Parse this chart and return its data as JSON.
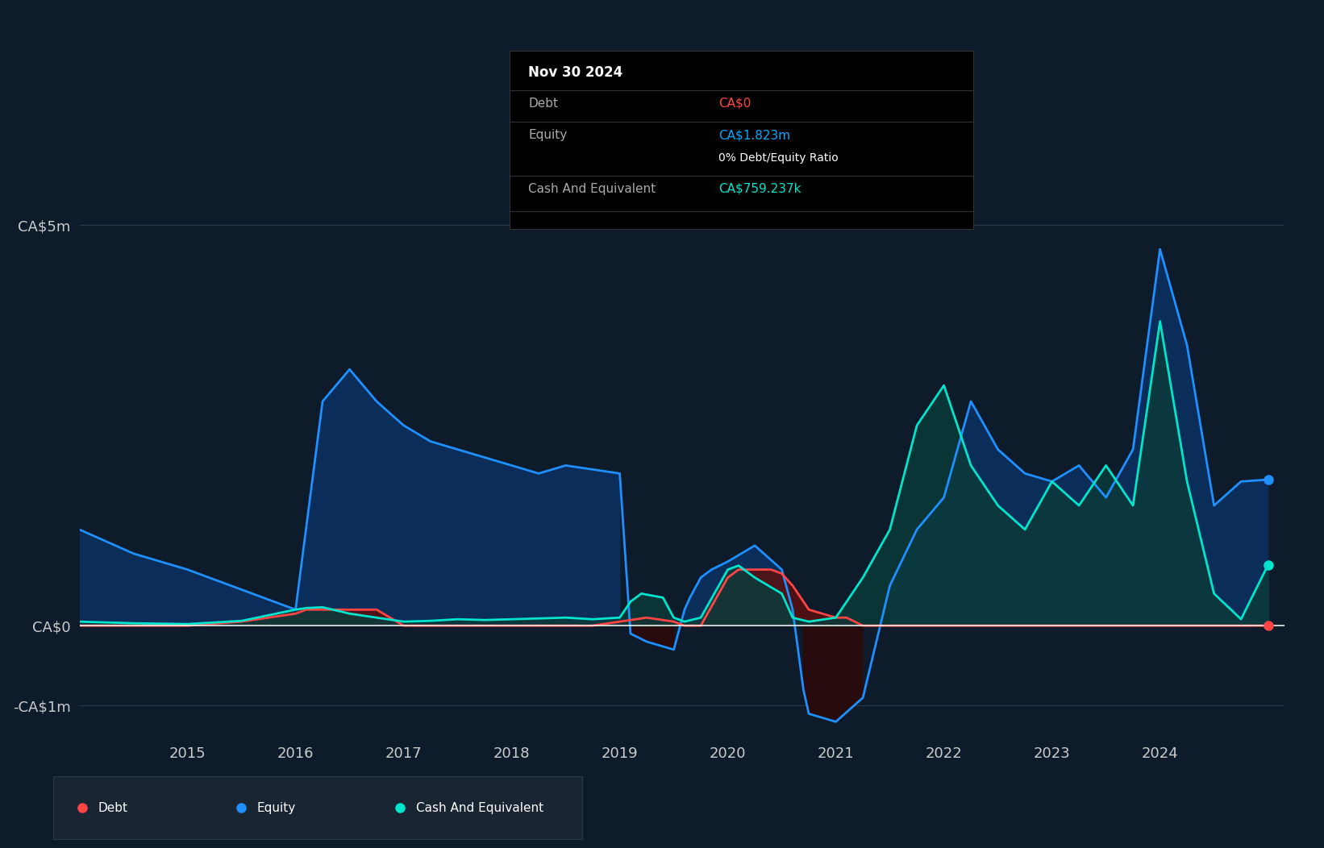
{
  "bg_color": "#0d1b2a",
  "grid_color": "#2a3a4a",
  "text_color": "#cccccc",
  "tooltip_box": {
    "date": "Nov 30 2024",
    "debt_label": "Debt",
    "debt_value": "CA$0",
    "debt_color": "#ff4444",
    "equity_label": "Equity",
    "equity_value": "CA$1.823m",
    "equity_color": "#00aaff",
    "ratio_text": "0% Debt/Equity Ratio",
    "ratio_color": "#ffffff",
    "cash_label": "Cash And Equivalent",
    "cash_value": "CA$759.237k",
    "cash_color": "#00e5cc"
  },
  "ytick_labels": [
    "CA$5m",
    "CA$0",
    "-CA$1m"
  ],
  "ytick_values": [
    5000000,
    0,
    -1000000
  ],
  "xtick_labels": [
    "2015",
    "2016",
    "2017",
    "2018",
    "2019",
    "2020",
    "2021",
    "2022",
    "2023",
    "2024"
  ],
  "xtick_values": [
    2015,
    2016,
    2017,
    2018,
    2019,
    2020,
    2021,
    2022,
    2023,
    2024
  ],
  "ymin": -1400000,
  "ymax": 5800000,
  "equity_color": "#1e90ff",
  "equity_fill_color": "#0a3060",
  "debt_color": "#ff4444",
  "debt_fill_color": "#5a1010",
  "cash_color": "#00e5cc",
  "cash_fill_color": "#0a3a3a",
  "zero_line_color": "#ffffff",
  "legend": [
    {
      "label": "Debt",
      "color": "#ff4444"
    },
    {
      "label": "Equity",
      "color": "#1e90ff"
    },
    {
      "label": "Cash And Equivalent",
      "color": "#00e5cc"
    }
  ],
  "equity_x": [
    2014.0,
    2014.5,
    2015.0,
    2015.5,
    2016.0,
    2016.25,
    2016.5,
    2016.75,
    2017.0,
    2017.25,
    2017.5,
    2017.75,
    2018.0,
    2018.25,
    2018.5,
    2018.75,
    2019.0,
    2019.1,
    2019.25,
    2019.5,
    2019.6,
    2019.65,
    2019.75,
    2019.85,
    2020.0,
    2020.25,
    2020.5,
    2020.6,
    2020.7,
    2020.75,
    2021.0,
    2021.25,
    2021.5,
    2021.75,
    2022.0,
    2022.25,
    2022.5,
    2022.75,
    2023.0,
    2023.25,
    2023.5,
    2023.75,
    2024.0,
    2024.25,
    2024.5,
    2024.75,
    2025.0
  ],
  "equity_y": [
    1200000,
    900000,
    700000,
    450000,
    200000,
    2800000,
    3200000,
    2800000,
    2500000,
    2300000,
    2200000,
    2100000,
    2000000,
    1900000,
    2000000,
    1950000,
    1900000,
    -100000,
    -200000,
    -300000,
    200000,
    350000,
    600000,
    700000,
    800000,
    1000000,
    700000,
    200000,
    -800000,
    -1100000,
    -1200000,
    -900000,
    500000,
    1200000,
    1600000,
    2800000,
    2200000,
    1900000,
    1800000,
    2000000,
    1600000,
    2200000,
    4700000,
    3500000,
    1500000,
    1800000,
    1823000
  ],
  "debt_x": [
    2014.0,
    2015.0,
    2015.5,
    2015.75,
    2016.0,
    2016.1,
    2016.25,
    2016.5,
    2016.75,
    2017.0,
    2017.5,
    2018.0,
    2018.5,
    2018.75,
    2019.0,
    2019.25,
    2019.5,
    2019.6,
    2019.75,
    2020.0,
    2020.1,
    2020.25,
    2020.4,
    2020.5,
    2020.6,
    2020.75,
    2021.0,
    2021.1,
    2021.25,
    2021.5,
    2022.0,
    2022.5,
    2023.0,
    2023.5,
    2024.0,
    2024.5,
    2024.75,
    2025.0
  ],
  "debt_y": [
    0,
    0,
    50000,
    100000,
    150000,
    200000,
    200000,
    200000,
    200000,
    0,
    0,
    0,
    0,
    0,
    50000,
    100000,
    50000,
    0,
    0,
    600000,
    700000,
    700000,
    700000,
    650000,
    500000,
    200000,
    100000,
    100000,
    0,
    0,
    0,
    0,
    0,
    0,
    0,
    0,
    0,
    0
  ],
  "cash_x": [
    2014.0,
    2014.5,
    2015.0,
    2015.5,
    2016.0,
    2016.1,
    2016.25,
    2016.5,
    2016.75,
    2017.0,
    2017.25,
    2017.5,
    2017.75,
    2018.0,
    2018.25,
    2018.5,
    2018.75,
    2019.0,
    2019.1,
    2019.2,
    2019.4,
    2019.5,
    2019.6,
    2019.75,
    2020.0,
    2020.1,
    2020.25,
    2020.5,
    2020.6,
    2020.75,
    2021.0,
    2021.25,
    2021.5,
    2021.75,
    2022.0,
    2022.25,
    2022.5,
    2022.75,
    2023.0,
    2023.25,
    2023.5,
    2023.75,
    2024.0,
    2024.25,
    2024.5,
    2024.75,
    2025.0
  ],
  "cash_y": [
    50000,
    30000,
    20000,
    60000,
    200000,
    220000,
    230000,
    150000,
    100000,
    50000,
    60000,
    80000,
    70000,
    80000,
    90000,
    100000,
    80000,
    100000,
    300000,
    400000,
    350000,
    100000,
    50000,
    100000,
    700000,
    750000,
    600000,
    400000,
    100000,
    50000,
    100000,
    600000,
    1200000,
    2500000,
    3000000,
    2000000,
    1500000,
    1200000,
    1800000,
    1500000,
    2000000,
    1500000,
    3800000,
    1800000,
    400000,
    80000,
    759237
  ]
}
